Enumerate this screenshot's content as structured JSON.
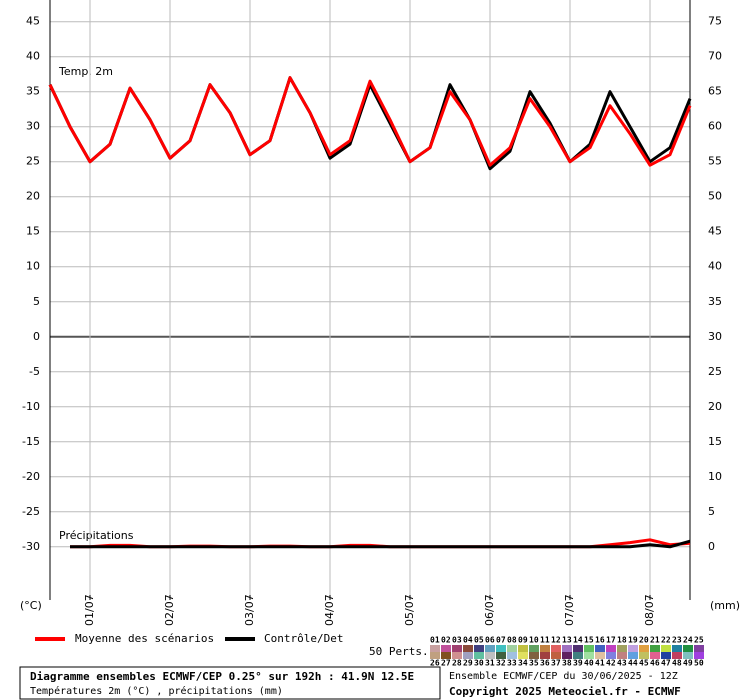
{
  "chart_data": {
    "type": "line",
    "title": "Diagramme ensembles ECMWF/CEP 0.25° sur 192h : 41.9N 12.5E",
    "subtitle": "Températures 2m (°C) , précipitations (mm)",
    "run_label": "Ensemble ECMWF/CEP du 30/06/2025 - 12Z",
    "copyright": "Copyright 2025 Meteociel.fr - ECMWF",
    "temp_label": "Temp. 2m",
    "precip_label": "Précipitations",
    "ylabel": "(°C)",
    "y2label": "(mm)",
    "grid": true,
    "xlim": [
      0,
      192
    ],
    "xticks": [
      {
        "value": 12,
        "label": "01/07"
      },
      {
        "value": 36,
        "label": "02/07"
      },
      {
        "value": 60,
        "label": "03/07"
      },
      {
        "value": 84,
        "label": "04/07"
      },
      {
        "value": 108,
        "label": "05/07"
      },
      {
        "value": 132,
        "label": "06/07"
      },
      {
        "value": 156,
        "label": "07/07"
      },
      {
        "value": 180,
        "label": "08/07"
      }
    ],
    "ylim": [
      -37.6,
      48.1
    ],
    "yticks": [
      -30,
      -25,
      -20,
      -15,
      -10,
      -5,
      0,
      5,
      10,
      15,
      20,
      25,
      30,
      35,
      40,
      45
    ],
    "y2lim": [
      -7.6,
      78.1
    ],
    "y2ticks": [
      0,
      5,
      10,
      15,
      20,
      25,
      30,
      35,
      40,
      45,
      50,
      55,
      60,
      65,
      70,
      75
    ],
    "x": [
      0,
      6,
      12,
      18,
      24,
      30,
      36,
      42,
      48,
      54,
      60,
      66,
      72,
      78,
      84,
      90,
      96,
      102,
      108,
      114,
      120,
      126,
      132,
      138,
      144,
      150,
      156,
      162,
      168,
      174,
      180,
      186,
      192
    ],
    "series": [
      {
        "name": "Moyenne des scénarios",
        "color": "#ff0000",
        "values": [
          36,
          30,
          25,
          27.5,
          35.5,
          31,
          25.5,
          28,
          36,
          32,
          26,
          28,
          37,
          32,
          26,
          28,
          36.5,
          31,
          25,
          27,
          35,
          31,
          24.5,
          27,
          34,
          30,
          25,
          27,
          33,
          29,
          24.5,
          26,
          33
        ]
      },
      {
        "name": "Contrôle/Det",
        "color": "#000000",
        "values": [
          36,
          30,
          25,
          27.5,
          35.5,
          31,
          25.5,
          28,
          36,
          32,
          26,
          28,
          37,
          32,
          25.5,
          27.5,
          36,
          30.5,
          25,
          27,
          36,
          31,
          24,
          26.5,
          35,
          30.5,
          25,
          27.5,
          35,
          30,
          25,
          27,
          34
        ]
      }
    ],
    "precip_series": [
      {
        "color": "#ff0000",
        "axis": "y2",
        "x": [
          6,
          12,
          18,
          24,
          30,
          36,
          42,
          48,
          54,
          60,
          66,
          72,
          78,
          84,
          90,
          96,
          102,
          108,
          114,
          120,
          126,
          132,
          138,
          144,
          150,
          156,
          162,
          168,
          174,
          180,
          186,
          192
        ],
        "values": [
          0,
          0,
          0.2,
          0.2,
          0,
          0,
          0.1,
          0.1,
          0,
          0,
          0.1,
          0.1,
          0,
          0,
          0.2,
          0.2,
          0,
          0,
          0,
          0,
          0,
          0,
          0,
          0,
          0,
          0,
          0,
          0.3,
          0.6,
          1,
          0.3,
          0.5
        ]
      },
      {
        "color": "#000000",
        "axis": "y2",
        "x": [
          6,
          12,
          18,
          24,
          30,
          36,
          42,
          48,
          54,
          60,
          66,
          72,
          78,
          84,
          90,
          96,
          102,
          108,
          114,
          120,
          126,
          132,
          138,
          144,
          150,
          156,
          162,
          168,
          174,
          180,
          186,
          192
        ],
        "values": [
          0,
          0,
          0,
          0,
          0,
          0,
          0,
          0,
          0,
          0,
          0,
          0,
          0,
          0,
          0,
          0,
          0,
          0,
          0,
          0,
          0,
          0,
          0,
          0,
          0,
          0,
          0,
          0,
          0,
          0.3,
          0,
          0.8
        ]
      }
    ],
    "members_label": "50 Perts.",
    "members": [
      {
        "label": "01",
        "color": "#c8a0a0"
      },
      {
        "label": "02",
        "color": "#c0509a"
      },
      {
        "label": "03",
        "color": "#a04070"
      },
      {
        "label": "04",
        "color": "#8a4a3a"
      },
      {
        "label": "05",
        "color": "#404080"
      },
      {
        "label": "06",
        "color": "#60a0c0"
      },
      {
        "label": "07",
        "color": "#40c0c0"
      },
      {
        "label": "08",
        "color": "#a0d0a0"
      },
      {
        "label": "09",
        "color": "#c0c040"
      },
      {
        "label": "10",
        "color": "#60a060"
      },
      {
        "label": "11",
        "color": "#c08040"
      },
      {
        "label": "12",
        "color": "#e06060"
      },
      {
        "label": "13",
        "color": "#a070c0"
      },
      {
        "label": "14",
        "color": "#503070"
      },
      {
        "label": "15",
        "color": "#60c060"
      },
      {
        "label": "16",
        "color": "#4060c0"
      },
      {
        "label": "17",
        "color": "#c040c0"
      },
      {
        "label": "18",
        "color": "#a0a060"
      },
      {
        "label": "19",
        "color": "#c0a0e0"
      },
      {
        "label": "20",
        "color": "#e0a040"
      },
      {
        "label": "21",
        "color": "#40a040"
      },
      {
        "label": "22",
        "color": "#c0e040"
      },
      {
        "label": "23",
        "color": "#2080a0"
      },
      {
        "label": "24",
        "color": "#209040"
      },
      {
        "label": "25",
        "color": "#8040a0"
      },
      {
        "label": "26",
        "color": "#c0a080"
      },
      {
        "label": "27",
        "color": "#805020"
      },
      {
        "label": "28",
        "color": "#d09090"
      },
      {
        "label": "29",
        "color": "#a0a0c0"
      },
      {
        "label": "30",
        "color": "#60c0a0"
      },
      {
        "label": "31",
        "color": "#c0c0c0"
      },
      {
        "label": "32",
        "color": "#406040"
      },
      {
        "label": "33",
        "color": "#a0c0e0"
      },
      {
        "label": "34",
        "color": "#e0e060"
      },
      {
        "label": "35",
        "color": "#806040"
      },
      {
        "label": "36",
        "color": "#a04040"
      },
      {
        "label": "37",
        "color": "#c06040"
      },
      {
        "label": "38",
        "color": "#602060"
      },
      {
        "label": "39",
        "color": "#408080"
      },
      {
        "label": "40",
        "color": "#a0e0a0"
      },
      {
        "label": "41",
        "color": "#e0c0a0"
      },
      {
        "label": "42",
        "color": "#8080e0"
      },
      {
        "label": "43",
        "color": "#c08080"
      },
      {
        "label": "44",
        "color": "#60a0e0"
      },
      {
        "label": "45",
        "color": "#c0c060"
      },
      {
        "label": "46",
        "color": "#e06090"
      },
      {
        "label": "47",
        "color": "#2040a0"
      },
      {
        "label": "48",
        "color": "#c04060"
      },
      {
        "label": "49",
        "color": "#80c0c0"
      },
      {
        "label": "50",
        "color": "#a040e0"
      }
    ]
  }
}
